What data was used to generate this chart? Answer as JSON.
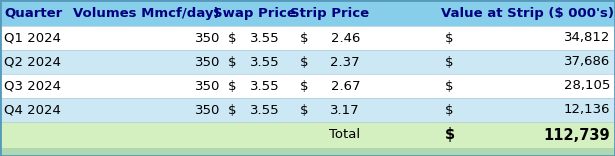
{
  "header": [
    "Quarter",
    "Volumes Mmcf/day)",
    "Swap Price",
    "Strip Price",
    "Value at Strip ($ 000’s)"
  ],
  "rows": [
    [
      "Q1 2024",
      "350",
      "$",
      "3.55",
      "$",
      "2.46",
      "$",
      "34,812"
    ],
    [
      "Q2 2024",
      "350",
      "$",
      "3.55",
      "$",
      "2.37",
      "$",
      "37,686"
    ],
    [
      "Q3 2024",
      "350",
      "$",
      "3.55",
      "$",
      "2.67",
      "$",
      "28,105"
    ],
    [
      "Q4 2024",
      "350",
      "$",
      "3.55",
      "$",
      "3.17",
      "$",
      "12,136"
    ]
  ],
  "total_label": "Total",
  "total_dollar": "$",
  "total_value": "112,739",
  "header_bg": "#87ceeb",
  "header_text": "#000080",
  "row_bg_white": "#ffffff",
  "row_bg_blue": "#cce8f4",
  "footer_bg": "#d4f0c0",
  "text_color": "#000000",
  "border_color": "#5599bb",
  "font_size": 9.5,
  "header_font_size": 9.5,
  "fig_bg": "#b0d8b0"
}
